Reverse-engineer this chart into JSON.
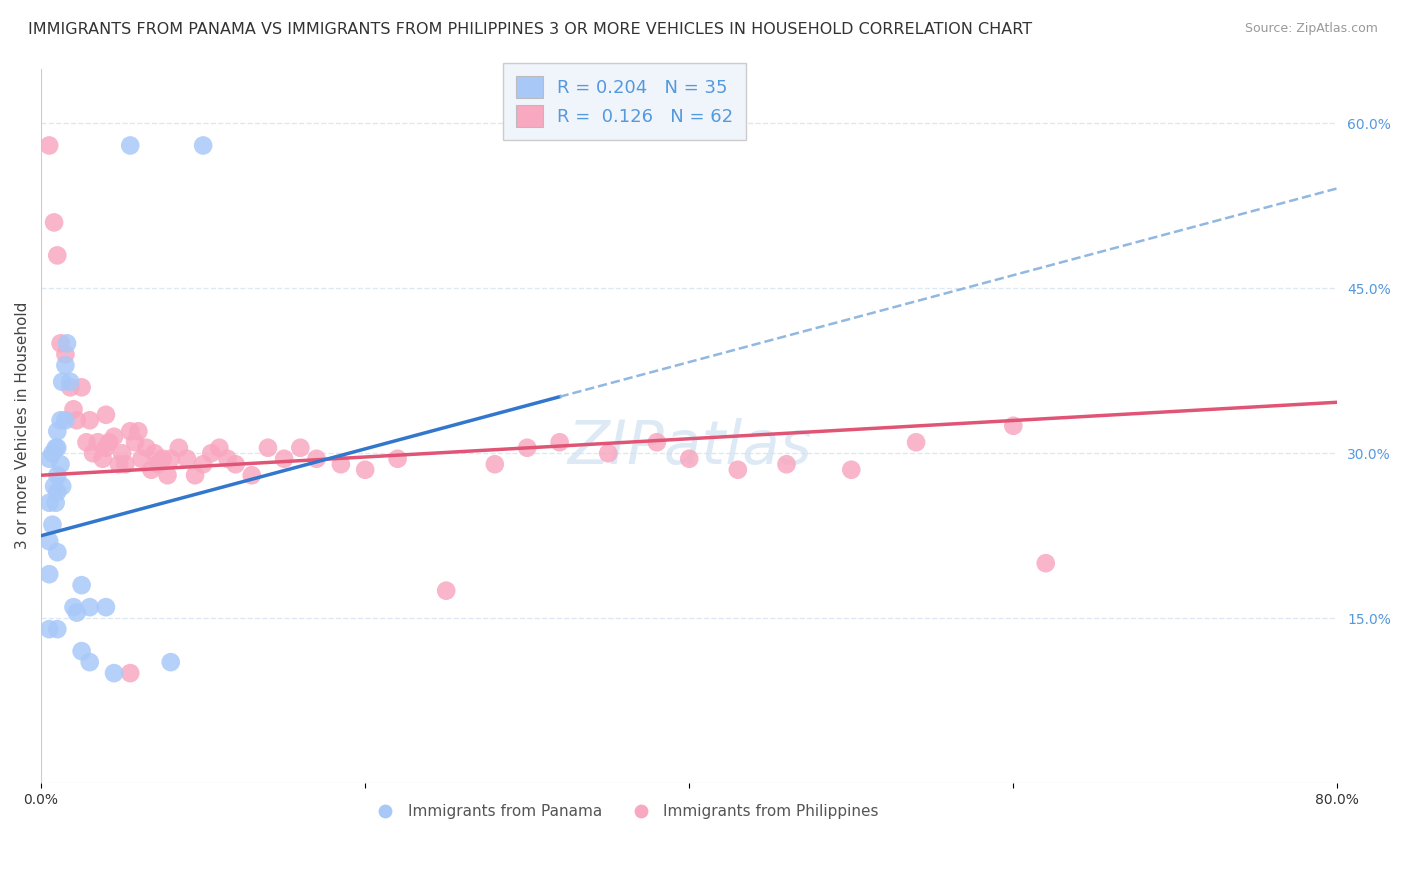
{
  "title": "IMMIGRANTS FROM PANAMA VS IMMIGRANTS FROM PHILIPPINES 3 OR MORE VEHICLES IN HOUSEHOLD CORRELATION CHART",
  "source": "Source: ZipAtlas.com",
  "ylabel": "3 or more Vehicles in Household",
  "xlim": [
    0.0,
    0.8
  ],
  "ylim": [
    0.0,
    0.65
  ],
  "y_ticks_right": [
    0.15,
    0.3,
    0.45,
    0.6
  ],
  "panama_color": "#a8c8f8",
  "philippines_color": "#f8a8c0",
  "panama_line_color": "#3377cc",
  "philippines_line_color": "#e05575",
  "dashed_line_color": "#90b8e0",
  "panama_R": 0.204,
  "panama_N": 35,
  "philippines_R": 0.126,
  "philippines_N": 62,
  "panama_x": [
    0.005,
    0.005,
    0.005,
    0.005,
    0.005,
    0.007,
    0.007,
    0.008,
    0.009,
    0.009,
    0.01,
    0.01,
    0.01,
    0.01,
    0.01,
    0.01,
    0.012,
    0.012,
    0.013,
    0.013,
    0.015,
    0.015,
    0.016,
    0.018,
    0.02,
    0.022,
    0.025,
    0.025,
    0.03,
    0.03,
    0.04,
    0.045,
    0.055,
    0.08,
    0.1
  ],
  "panama_y": [
    0.295,
    0.255,
    0.22,
    0.19,
    0.14,
    0.3,
    0.235,
    0.27,
    0.305,
    0.255,
    0.32,
    0.305,
    0.28,
    0.265,
    0.21,
    0.14,
    0.33,
    0.29,
    0.365,
    0.27,
    0.38,
    0.33,
    0.4,
    0.365,
    0.16,
    0.155,
    0.18,
    0.12,
    0.16,
    0.11,
    0.16,
    0.1,
    0.58,
    0.11,
    0.58
  ],
  "philippines_x": [
    0.005,
    0.008,
    0.01,
    0.012,
    0.015,
    0.018,
    0.02,
    0.022,
    0.025,
    0.028,
    0.03,
    0.032,
    0.035,
    0.038,
    0.04,
    0.04,
    0.042,
    0.045,
    0.048,
    0.05,
    0.052,
    0.055,
    0.058,
    0.06,
    0.062,
    0.065,
    0.068,
    0.07,
    0.072,
    0.075,
    0.078,
    0.08,
    0.085,
    0.09,
    0.095,
    0.1,
    0.105,
    0.11,
    0.115,
    0.12,
    0.13,
    0.14,
    0.15,
    0.16,
    0.17,
    0.185,
    0.2,
    0.22,
    0.25,
    0.28,
    0.3,
    0.32,
    0.35,
    0.38,
    0.4,
    0.43,
    0.46,
    0.5,
    0.54,
    0.6,
    0.62,
    0.055
  ],
  "philippines_y": [
    0.58,
    0.51,
    0.48,
    0.4,
    0.39,
    0.36,
    0.34,
    0.33,
    0.36,
    0.31,
    0.33,
    0.3,
    0.31,
    0.295,
    0.335,
    0.305,
    0.31,
    0.315,
    0.29,
    0.3,
    0.29,
    0.32,
    0.31,
    0.32,
    0.295,
    0.305,
    0.285,
    0.3,
    0.29,
    0.295,
    0.28,
    0.295,
    0.305,
    0.295,
    0.28,
    0.29,
    0.3,
    0.305,
    0.295,
    0.29,
    0.28,
    0.305,
    0.295,
    0.305,
    0.295,
    0.29,
    0.285,
    0.295,
    0.175,
    0.29,
    0.305,
    0.31,
    0.3,
    0.31,
    0.295,
    0.285,
    0.29,
    0.285,
    0.31,
    0.325,
    0.2,
    0.1
  ],
  "panama_line_x_start": 0.0,
  "panama_line_x_solid_end": 0.32,
  "panama_line_x_dash_end": 0.8,
  "panama_line_y0": 0.225,
  "panama_line_slope": 0.395,
  "philippines_line_x_start": 0.0,
  "philippines_line_x_end": 0.8,
  "philippines_line_y0": 0.28,
  "philippines_line_slope": 0.083,
  "watermark": "ZIPatlas",
  "background_color": "#ffffff",
  "grid_color": "#dde8f2",
  "title_fontsize": 11.5,
  "axis_label_fontsize": 11,
  "tick_fontsize": 10,
  "legend_fontsize": 13
}
